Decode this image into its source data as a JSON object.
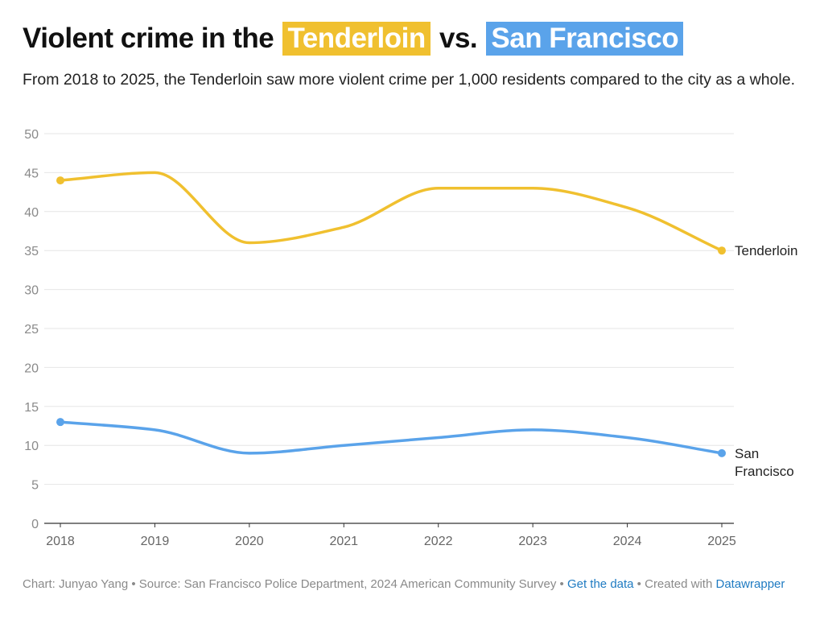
{
  "title": {
    "prefix": "Violent crime in the",
    "tenderloin": "Tenderloin",
    "vs": "vs.",
    "sf": "San Francisco"
  },
  "subtitle": "From 2018 to 2025, the Tenderloin saw more violent crime per 1,000 residents compared to the city as a whole.",
  "colors": {
    "tenderloin": "#f0c02f",
    "sf": "#5aa3ea",
    "grid": "#e6e6e6",
    "axis": "#333333",
    "tick": "#8a8a8a"
  },
  "chart_data": {
    "type": "line",
    "title": "Violent crime in the Tenderloin vs. San Francisco",
    "xlabel": "",
    "ylabel": "",
    "x": [
      "2018",
      "2019",
      "2020",
      "2021",
      "2022",
      "2023",
      "2024",
      "2025"
    ],
    "ylim": [
      0,
      50
    ],
    "yticks": [
      0,
      5,
      10,
      15,
      20,
      25,
      30,
      35,
      40,
      45,
      50
    ],
    "grid": true,
    "series": [
      {
        "name": "Tenderloin",
        "label_lines": [
          "Tenderloin"
        ],
        "values": [
          44,
          45,
          36,
          38,
          43,
          43,
          40.5,
          35
        ]
      },
      {
        "name": "San Francisco",
        "label_lines": [
          "San",
          "Francisco"
        ],
        "values": [
          13,
          12,
          9,
          10,
          11,
          12,
          11,
          9
        ]
      }
    ]
  },
  "footer": {
    "chart_by": "Chart: Junyao Yang",
    "sep": " • ",
    "source": "Source: San Francisco Police Department, 2024 American Community Survey",
    "get_data": "Get the data",
    "created": "Created with",
    "datawrapper": "Datawrapper"
  }
}
